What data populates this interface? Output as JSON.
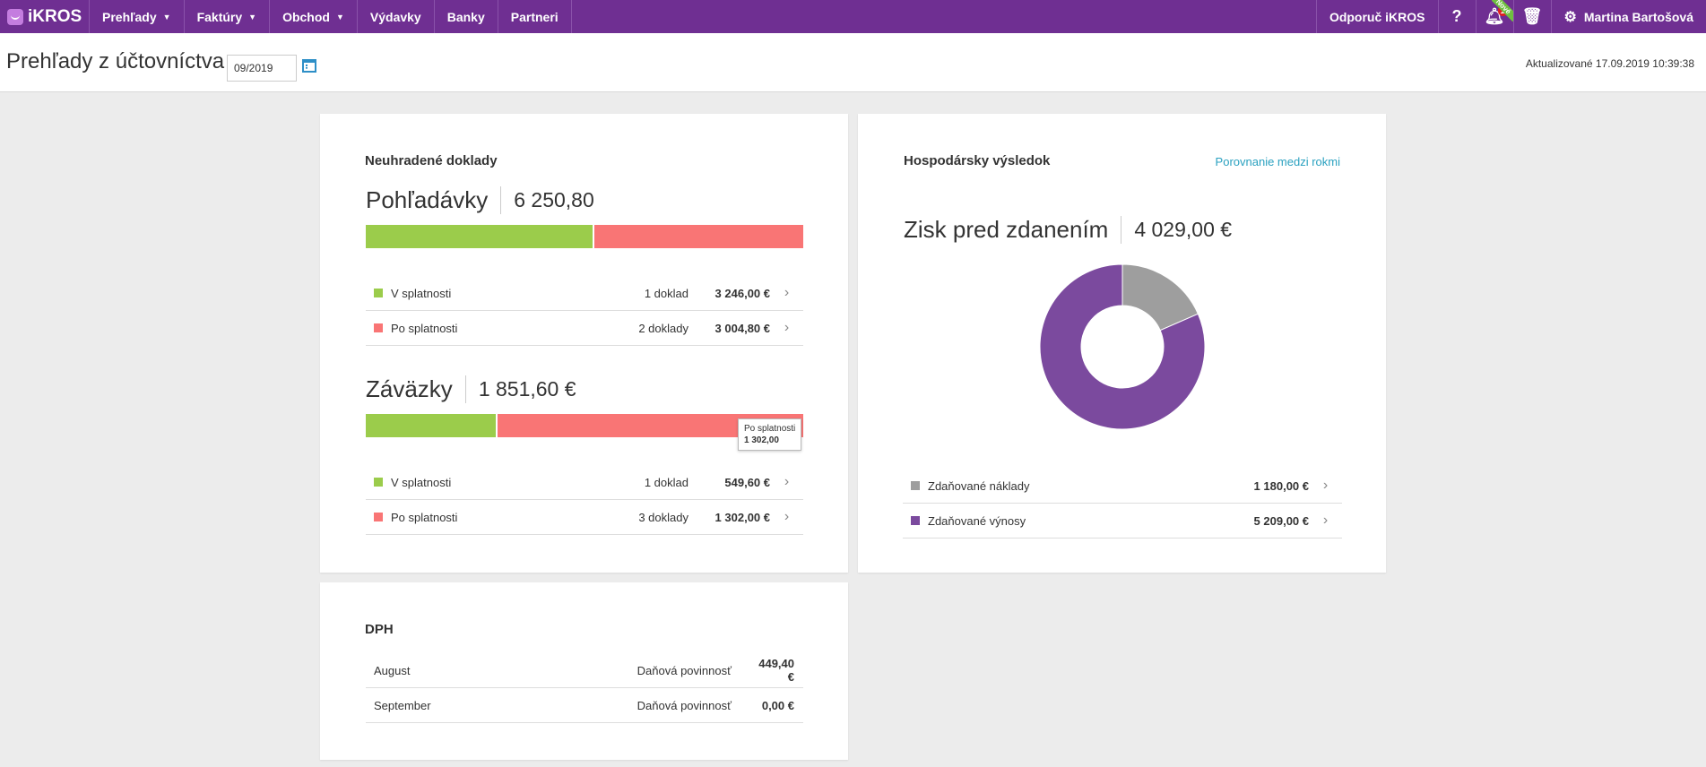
{
  "app": {
    "logo_text": "iKROS"
  },
  "nav": {
    "items": [
      {
        "label": "Prehľady",
        "caret": true
      },
      {
        "label": "Faktúry",
        "caret": true
      },
      {
        "label": "Obchod",
        "caret": true
      },
      {
        "label": "Výdavky",
        "caret": false
      },
      {
        "label": "Banky",
        "caret": false
      },
      {
        "label": "Partneri",
        "caret": false
      }
    ],
    "recommend": "Odporuč iKROS",
    "help": "?",
    "notifications_count": "1",
    "new_badge": "Nové",
    "user": "Martina Bartošová"
  },
  "header": {
    "title": "Prehľady z účtovníctva",
    "period": "09/2019",
    "updated": "Aktualizované 17.09.2019 10:39:38"
  },
  "unpaid": {
    "title": "Neuhradené doklady",
    "receivables": {
      "label": "Pohľadávky",
      "value": "6 250,80",
      "bar_green_fraction": 0.519,
      "rows": [
        {
          "name": "V splatnosti",
          "count": "1 doklad",
          "amount": "3 246,00 €",
          "color": "#9bcc4b"
        },
        {
          "name": "Po splatnosti",
          "count": "2 doklady",
          "amount": "3 004,80 €",
          "color": "#f97575"
        }
      ]
    },
    "payables": {
      "label": "Záväzky",
      "value": "1 851,60 €",
      "bar_green_fraction": 0.297,
      "tooltip_title": "Po splatnosti",
      "tooltip_value": "1 302,00",
      "rows": [
        {
          "name": "V splatnosti",
          "count": "1 doklad",
          "amount": "549,60 €",
          "color": "#9bcc4b"
        },
        {
          "name": "Po splatnosti",
          "count": "3 doklady",
          "amount": "1 302,00 €",
          "color": "#f97575"
        }
      ]
    }
  },
  "result": {
    "title": "Hospodársky výsledok",
    "compare_link": "Porovnanie medzi rokmi",
    "profit_label": "Zisk pred zdanením",
    "profit_value": "4 029,00 €",
    "rows": [
      {
        "name": "Zdaňované náklady",
        "amount": "1 180,00 €",
        "color": "#9e9e9e"
      },
      {
        "name": "Zdaňované výnosy",
        "amount": "5 209,00 €",
        "color": "#7b4a9e"
      }
    ]
  },
  "chart_data": {
    "type": "pie",
    "categories": [
      "Zdaňované náklady",
      "Zdaňované výnosy"
    ],
    "values": [
      1180.0,
      5209.0
    ],
    "colors": [
      "#9e9e9e",
      "#7b4a9e"
    ],
    "donut": true
  },
  "dph": {
    "title": "DPH",
    "rows": [
      {
        "month": "August",
        "label": "Daňová povinnosť",
        "value": "449,40 €"
      },
      {
        "month": "September",
        "label": "Daňová povinnosť",
        "value": "0,00 €"
      }
    ]
  }
}
